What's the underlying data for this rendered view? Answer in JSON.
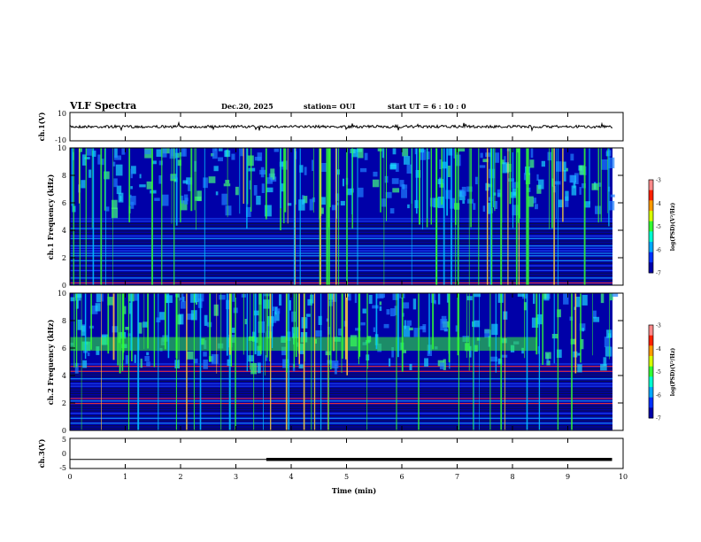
{
  "header": {
    "title": "VLF Spectra",
    "date": "Dec.20, 2025",
    "station": "station= OUI",
    "start": "start  UT =   6  : 10 : 0"
  },
  "chart_data": [
    {
      "type": "line",
      "panel": "ch1-waveform",
      "ylabel": "ch.1(V)",
      "ylim": [
        -10,
        10
      ],
      "y_tick_labels": [
        "10",
        "-10"
      ],
      "baseline_value": 0,
      "xlim": [
        0,
        10
      ]
    },
    {
      "type": "heatmap",
      "panel": "ch1-spectrogram",
      "ylabel": "ch.1 Frequency (kHz)",
      "ylim": [
        0,
        10
      ],
      "y_tick_labels": [
        "0",
        "2",
        "4",
        "6",
        "8",
        "10"
      ],
      "xlim": [
        0,
        10
      ],
      "colorbar": {
        "label": "log(PSD)(V²/Hz)",
        "ticks": [
          "-3",
          "-4",
          "-5",
          "-6",
          "-7"
        ],
        "range": [
          -7,
          -3
        ]
      },
      "features": {
        "upper_band_khz": [
          5,
          10
        ],
        "lower_band_khz": [
          0,
          5
        ]
      }
    },
    {
      "type": "heatmap",
      "panel": "ch2-spectrogram",
      "ylabel": "ch.2 Frequency (kHz)",
      "ylim": [
        0,
        10
      ],
      "y_tick_labels": [
        "0",
        "2",
        "4",
        "6",
        "8",
        "10"
      ],
      "xlim": [
        0,
        10
      ],
      "colorbar": {
        "label": "log(PSD)(V²/Hz)",
        "ticks": [
          "-3",
          "-4",
          "-5",
          "-6",
          "-7"
        ],
        "range": [
          -7,
          -3
        ]
      },
      "features": {
        "green_band_khz": [
          5.8,
          6.8
        ]
      }
    },
    {
      "type": "line",
      "panel": "ch3-signal",
      "ylabel": "ch.3(V)",
      "ylim": [
        -5,
        5
      ],
      "y_tick_labels": [
        "5",
        "0",
        "-5"
      ],
      "x": [
        0,
        3.55,
        3.55,
        9.8
      ],
      "y": [
        -2,
        -2,
        -2,
        -2
      ],
      "xlim": [
        0,
        10
      ]
    }
  ],
  "x_axis": {
    "label": "Time  (min)",
    "ticks": [
      "0",
      "1",
      "2",
      "3",
      "4",
      "5",
      "6",
      "7",
      "8",
      "9",
      "10"
    ],
    "range": [
      0,
      10
    ]
  },
  "colors": {
    "low": "#0000a8",
    "mid": "#00c8ff",
    "high": "#33ff33",
    "peak": "#ff2000"
  }
}
